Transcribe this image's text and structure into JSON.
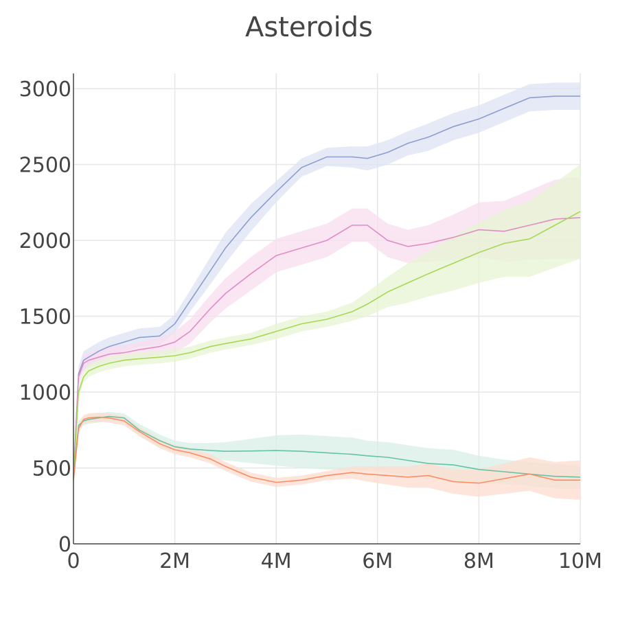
{
  "chart_data": {
    "type": "line",
    "title": "Asteroids",
    "xlabel": "",
    "ylabel": "",
    "xlim": [
      0,
      10000000
    ],
    "ylim": [
      0,
      3100
    ],
    "x_ticks": [
      {
        "value": 0,
        "label": "0"
      },
      {
        "value": 2000000,
        "label": "2M"
      },
      {
        "value": 4000000,
        "label": "4M"
      },
      {
        "value": 6000000,
        "label": "6M"
      },
      {
        "value": 8000000,
        "label": "8M"
      },
      {
        "value": 10000000,
        "label": "10M"
      }
    ],
    "y_ticks": [
      {
        "value": 0,
        "label": "0"
      },
      {
        "value": 500,
        "label": "500"
      },
      {
        "value": 1000,
        "label": "1000"
      },
      {
        "value": 1500,
        "label": "1500"
      },
      {
        "value": 2000,
        "label": "2000"
      },
      {
        "value": 2500,
        "label": "2500"
      },
      {
        "value": 3000,
        "label": "3000"
      }
    ],
    "grid": true,
    "legend": "none",
    "x": [
      0,
      100000,
      200000,
      300000,
      500000,
      700000,
      1000000,
      1300000,
      1700000,
      2000000,
      2300000,
      2700000,
      3000000,
      3500000,
      4000000,
      4500000,
      5000000,
      5500000,
      5800000,
      6200000,
      6600000,
      7000000,
      7500000,
      8000000,
      8500000,
      9000000,
      9500000,
      10000000
    ],
    "series": [
      {
        "color": "#8c9ed0",
        "band_color": "#dde3f3",
        "values": [
          450,
          1120,
          1210,
          1230,
          1270,
          1300,
          1330,
          1360,
          1370,
          1450,
          1600,
          1800,
          1950,
          2150,
          2320,
          2480,
          2550,
          2550,
          2540,
          2580,
          2640,
          2680,
          2750,
          2800,
          2870,
          2940,
          2950,
          2950
        ],
        "band": [
          40,
          50,
          60,
          60,
          60,
          60,
          60,
          60,
          60,
          60,
          70,
          90,
          100,
          90,
          70,
          60,
          60,
          70,
          80,
          80,
          80,
          90,
          90,
          90,
          90,
          90,
          90,
          90
        ]
      },
      {
        "color": "#e08cc6",
        "band_color": "#f8dcef",
        "values": [
          440,
          1100,
          1190,
          1210,
          1230,
          1250,
          1260,
          1280,
          1300,
          1330,
          1400,
          1550,
          1650,
          1780,
          1900,
          1950,
          2000,
          2100,
          2100,
          2000,
          1960,
          1980,
          2020,
          2070,
          2060,
          2100,
          2140,
          2150
        ],
        "band": [
          40,
          50,
          50,
          50,
          50,
          50,
          50,
          50,
          60,
          70,
          80,
          90,
          100,
          110,
          110,
          110,
          110,
          110,
          110,
          110,
          110,
          120,
          150,
          180,
          200,
          230,
          260,
          270
        ]
      },
      {
        "color": "#a6d854",
        "band_color": "#e5f4d2",
        "values": [
          430,
          1000,
          1100,
          1140,
          1170,
          1190,
          1210,
          1220,
          1230,
          1240,
          1260,
          1300,
          1320,
          1350,
          1400,
          1450,
          1480,
          1530,
          1580,
          1660,
          1720,
          1780,
          1850,
          1920,
          1980,
          2010,
          2100,
          2190
        ],
        "band": [
          40,
          40,
          40,
          40,
          40,
          40,
          40,
          40,
          40,
          40,
          40,
          40,
          40,
          40,
          50,
          50,
          50,
          60,
          80,
          100,
          130,
          150,
          180,
          200,
          220,
          250,
          280,
          310
        ]
      },
      {
        "color": "#66c2a5",
        "band_color": "#d7efe6",
        "values": [
          430,
          780,
          810,
          820,
          830,
          840,
          830,
          750,
          680,
          640,
          625,
          615,
          610,
          612,
          615,
          610,
          600,
          590,
          580,
          570,
          550,
          530,
          520,
          490,
          475,
          460,
          445,
          440
        ],
        "band": [
          30,
          30,
          30,
          30,
          30,
          30,
          30,
          40,
          40,
          40,
          40,
          50,
          60,
          80,
          100,
          110,
          110,
          110,
          100,
          100,
          100,
          100,
          100,
          90,
          80,
          80,
          80,
          80
        ]
      },
      {
        "color": "#fc8d62",
        "band_color": "#fddccf",
        "values": [
          420,
          760,
          820,
          830,
          835,
          830,
          810,
          740,
          660,
          620,
          600,
          560,
          510,
          440,
          405,
          420,
          450,
          470,
          460,
          450,
          440,
          450,
          410,
          400,
          430,
          460,
          420,
          420
        ],
        "band": [
          30,
          30,
          30,
          30,
          30,
          30,
          30,
          30,
          30,
          30,
          30,
          30,
          30,
          30,
          30,
          30,
          30,
          40,
          50,
          60,
          70,
          80,
          80,
          90,
          100,
          110,
          120,
          130
        ]
      }
    ]
  }
}
